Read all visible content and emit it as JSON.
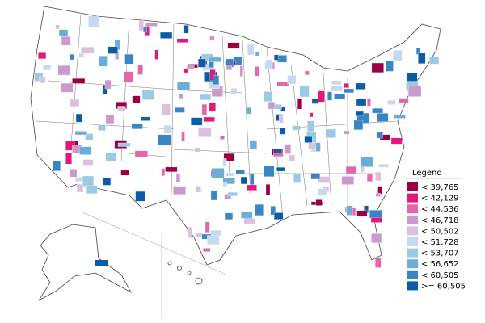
{
  "legend": {
    "title": "Legend",
    "items": [
      {
        "label": "< 39,765",
        "color": "#990044"
      },
      {
        "label": "< 42,129",
        "color": "#e0197a"
      },
      {
        "label": "< 44,536",
        "color": "#e367a9"
      },
      {
        "label": "< 46,718",
        "color": "#cc99cc"
      },
      {
        "label": "< 50,502",
        "color": "#dcc0e0"
      },
      {
        "label": "< 51,728",
        "color": "#c6d9ee"
      },
      {
        "label": "< 53,707",
        "color": "#9ccae4"
      },
      {
        "label": "< 56,652",
        "color": "#6aaed6"
      },
      {
        "label": "< 60,505",
        "color": "#3a85c4"
      },
      {
        "label": ">= 60,505",
        "color": "#0b5ba5"
      }
    ]
  }
}
